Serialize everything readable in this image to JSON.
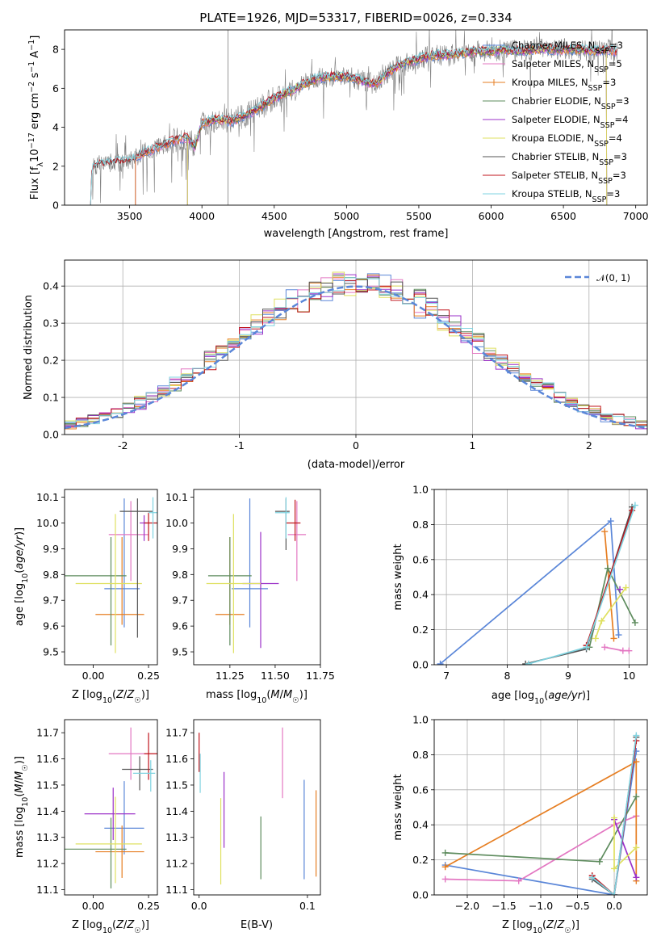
{
  "chart_data": [
    {
      "id": "spectrum",
      "type": "line",
      "title": "PLATE=1926, MJD=53317, FIBERID=0026, z=0.334",
      "xlabel": "wavelength [Angstrom, rest frame]",
      "ylabel": "Flux [f_λ 10^-17 erg cm^-2 s^-1 A^-1]",
      "xlim": [
        3050,
        7080
      ],
      "ylim": [
        0,
        9
      ],
      "xticks": [
        3500,
        4000,
        4500,
        5000,
        5500,
        6000,
        6500,
        7000
      ],
      "yticks": [
        0,
        2,
        4,
        6,
        8
      ],
      "grid": false,
      "legend_position": "top-right",
      "spectrum_anchors": [
        [
          3230,
          0
        ],
        [
          3240,
          1.9
        ],
        [
          3300,
          2.1
        ],
        [
          3400,
          2.2
        ],
        [
          3500,
          2.25
        ],
        [
          3600,
          2.7
        ],
        [
          3700,
          3.0
        ],
        [
          3800,
          3.3
        ],
        [
          3900,
          3.5
        ],
        [
          3950,
          3.0
        ],
        [
          4000,
          4.2
        ],
        [
          4100,
          4.4
        ],
        [
          4200,
          4.3
        ],
        [
          4300,
          4.6
        ],
        [
          4400,
          5.0
        ],
        [
          4500,
          5.5
        ],
        [
          4600,
          5.8
        ],
        [
          4700,
          6.2
        ],
        [
          4800,
          6.5
        ],
        [
          4900,
          6.6
        ],
        [
          5000,
          6.6
        ],
        [
          5100,
          6.4
        ],
        [
          5200,
          6.2
        ],
        [
          5300,
          6.9
        ],
        [
          5400,
          7.3
        ],
        [
          5500,
          7.5
        ],
        [
          5600,
          7.7
        ],
        [
          5700,
          7.7
        ],
        [
          5800,
          7.8
        ],
        [
          5900,
          7.9
        ],
        [
          6000,
          7.9
        ],
        [
          6100,
          8.0
        ],
        [
          6200,
          7.9
        ],
        [
          6300,
          8.0
        ],
        [
          6400,
          8.0
        ],
        [
          6500,
          8.0
        ],
        [
          6600,
          8.0
        ],
        [
          6700,
          7.9
        ],
        [
          6800,
          8.0
        ],
        [
          6870,
          7.9
        ]
      ],
      "series": [
        {
          "name": "Chabrier MILES, N_SSP=3",
          "color": "#5a86d8",
          "xstart": 3540,
          "xend": 6870
        },
        {
          "name": "Salpeter MILES, N_SSP=5",
          "color": "#e377c2",
          "xstart": 3540,
          "xend": 6870
        },
        {
          "name": "Kroupa MILES, N_SSP=3",
          "color": "#e67e22",
          "xstart": 3540,
          "xend": 6870
        },
        {
          "name": "Chabrier ELODIE, N_SSP=3",
          "color": "#5e8c5e",
          "xstart": 3900,
          "xend": 6800
        },
        {
          "name": "Salpeter ELODIE, N_SSP=4",
          "color": "#9b30c8",
          "xstart": 3900,
          "xend": 6800
        },
        {
          "name": "Kroupa ELODIE, N_SSP=4",
          "color": "#dfe060",
          "xstart": 3900,
          "xend": 6800
        },
        {
          "name": "Chabrier STELIB, N_SSP=3",
          "color": "#555555",
          "xstart": 3230,
          "xend": 6870
        },
        {
          "name": "Salpeter STELIB, N_SSP=3",
          "color": "#c0141c",
          "xstart": 3230,
          "xend": 6870
        },
        {
          "name": "Kroupa STELIB, N_SSP=3",
          "color": "#7fd3e0",
          "xstart": 3230,
          "xend": 6870
        }
      ]
    },
    {
      "id": "residuals",
      "type": "line",
      "xlabel": "(data-model)/error",
      "ylabel": "Normed distribution",
      "xlim": [
        -2.5,
        2.5
      ],
      "ylim": [
        0,
        0.47
      ],
      "xticks": [
        -2,
        -1,
        0,
        1,
        2
      ],
      "yticks": [
        0.0,
        0.1,
        0.2,
        0.3,
        0.4
      ],
      "grid": true,
      "legend_position": "top-right",
      "reference_curve": {
        "name": "𝒩(0, 1)",
        "mean": 0,
        "sigma": 1,
        "color": "#5a86d8"
      },
      "bin_width": 0.1,
      "colors": [
        "#5a86d8",
        "#e377c2",
        "#e67e22",
        "#5e8c5e",
        "#9b30c8",
        "#dfe060",
        "#555555",
        "#c0141c",
        "#7fd3e0"
      ]
    },
    {
      "id": "z-age",
      "type": "scatter",
      "xlabel": "Z [log10(Z/Z☉)]",
      "ylabel": "age [log10(age/yr)]",
      "xlim": [
        -0.13,
        0.29
      ],
      "ylim": [
        9.45,
        10.13
      ],
      "xticks": [
        0.0,
        0.25
      ],
      "xtick_labels": [
        "0.00",
        "0.25"
      ],
      "yticks": [
        9.5,
        9.6,
        9.7,
        9.8,
        9.9,
        10.0,
        10.1
      ],
      "points": [
        {
          "color": "#5a86d8",
          "x": 0.14,
          "xerr": [
            0.09,
            0.07
          ],
          "y": 9.745,
          "yerr": [
            0.15,
            0.35
          ]
        },
        {
          "color": "#e377c2",
          "x": 0.17,
          "xerr": [
            0.1,
            0.08
          ],
          "y": 9.955,
          "yerr": [
            0.18,
            0.13
          ]
        },
        {
          "color": "#e67e22",
          "x": 0.13,
          "xerr": [
            0.12,
            0.1
          ],
          "y": 9.645,
          "yerr": [
            0.04,
            0.3
          ]
        },
        {
          "color": "#5e8c5e",
          "x": 0.08,
          "xerr": [
            0.22,
            0.07
          ],
          "y": 9.795,
          "yerr": [
            0.27,
            0.15
          ]
        },
        {
          "color": "#9b30c8",
          "x": 0.23,
          "xerr": [
            0.02,
            0.02
          ],
          "y": 10.0,
          "yerr": [
            0.07,
            0.03
          ]
        },
        {
          "color": "#dfe060",
          "x": 0.1,
          "xerr": [
            0.18,
            0.12
          ],
          "y": 9.765,
          "yerr": [
            0.27,
            0.27
          ]
        },
        {
          "color": "#555555",
          "x": 0.2,
          "xerr": [
            0.08,
            0.07
          ],
          "y": 10.045,
          "yerr": [
            0.49,
            0.05
          ]
        },
        {
          "color": "#c0141c",
          "x": 0.25,
          "xerr": [
            0.02,
            0.04
          ],
          "y": 10.0,
          "yerr": [
            0.07,
            0.04
          ]
        },
        {
          "color": "#7fd3e0",
          "x": 0.27,
          "xerr": [
            0.02,
            0.02
          ],
          "y": 10.04,
          "yerr": [
            0.1,
            0.06
          ]
        }
      ]
    },
    {
      "id": "mass-age",
      "type": "scatter",
      "xlabel": "mass [log10(M/M☉)]",
      "ylabel": "",
      "xlim": [
        11.05,
        11.75
      ],
      "ylim": [
        9.45,
        10.13
      ],
      "xticks": [
        11.25,
        11.5,
        11.75
      ],
      "xtick_labels": [
        "11.25",
        "11.50",
        "11.75"
      ],
      "yticks": [
        9.5,
        9.6,
        9.7,
        9.8,
        9.9,
        10.0,
        10.1
      ],
      "points": [
        {
          "color": "#5a86d8",
          "x": 11.36,
          "xerr": [
            0.1,
            0.1
          ],
          "y": 9.745,
          "yerr": [
            0.15,
            0.35
          ]
        },
        {
          "color": "#e377c2",
          "x": 11.62,
          "xerr": [
            0.05,
            0.05
          ],
          "y": 9.955,
          "yerr": [
            0.18,
            0.13
          ]
        },
        {
          "color": "#e67e22",
          "x": 11.25,
          "xerr": [
            0.08,
            0.08
          ],
          "y": 9.645,
          "yerr": [
            0.04,
            0.3
          ]
        },
        {
          "color": "#5e8c5e",
          "x": 11.25,
          "xerr": [
            0.12,
            0.12
          ],
          "y": 9.795,
          "yerr": [
            0.27,
            0.15
          ]
        },
        {
          "color": "#9b30c8",
          "x": 11.42,
          "xerr": [
            0.1,
            0.1
          ],
          "y": 9.765,
          "yerr": [
            0.25,
            0.2
          ]
        },
        {
          "color": "#dfe060",
          "x": 11.27,
          "xerr": [
            0.15,
            0.15
          ],
          "y": 9.765,
          "yerr": [
            0.27,
            0.27
          ]
        },
        {
          "color": "#555555",
          "x": 11.56,
          "xerr": [
            0.06,
            0.02
          ],
          "y": 10.045,
          "yerr": [
            0.15,
            0.05
          ]
        },
        {
          "color": "#c0141c",
          "x": 11.61,
          "xerr": [
            0.05,
            0.03
          ],
          "y": 10.0,
          "yerr": [
            0.07,
            0.09
          ]
        },
        {
          "color": "#7fd3e0",
          "x": 11.56,
          "xerr": [
            0.06,
            0.02
          ],
          "y": 10.04,
          "yerr": [
            0.1,
            0.06
          ]
        }
      ]
    },
    {
      "id": "weight-age",
      "type": "line",
      "xlabel": "age [log10(age/yr)]",
      "ylabel": "mass weight",
      "xlim": [
        6.8,
        10.3
      ],
      "ylim": [
        0,
        1.0
      ],
      "xticks": [
        7,
        8,
        9,
        10
      ],
      "yticks": [
        0.0,
        0.2,
        0.4,
        0.6,
        0.8,
        1.0
      ],
      "grid": true,
      "series": [
        {
          "color": "#5a86d8",
          "points": [
            [
              6.9,
              0.005
            ],
            [
              9.7,
              0.82
            ],
            [
              9.83,
              0.17
            ]
          ]
        },
        {
          "color": "#e377c2",
          "points": [
            [
              9.6,
              0.1
            ],
            [
              9.9,
              0.08
            ],
            [
              10.0,
              0.08
            ]
          ]
        },
        {
          "color": "#e67e22",
          "points": [
            [
              9.6,
              0.76
            ],
            [
              9.75,
              0.15
            ]
          ]
        },
        {
          "color": "#5e8c5e",
          "points": [
            [
              9.35,
              0.1
            ],
            [
              9.65,
              0.55
            ],
            [
              10.1,
              0.24
            ]
          ]
        },
        {
          "color": "#9b30c8",
          "points": [
            [
              9.85,
              0.43
            ]
          ]
        },
        {
          "color": "#dfe060",
          "points": [
            [
              9.45,
              0.15
            ],
            [
              9.55,
              0.25
            ],
            [
              9.95,
              0.44
            ]
          ]
        },
        {
          "color": "#555555",
          "points": [
            [
              8.3,
              0.005
            ],
            [
              9.3,
              0.09
            ],
            [
              10.05,
              0.9
            ]
          ]
        },
        {
          "color": "#c0141c",
          "points": [
            [
              9.3,
              0.11
            ],
            [
              10.05,
              0.88
            ]
          ]
        },
        {
          "color": "#7fd3e0",
          "points": [
            [
              8.35,
              0.005
            ],
            [
              9.3,
              0.1
            ],
            [
              10.1,
              0.91
            ]
          ]
        }
      ]
    },
    {
      "id": "z-mass",
      "type": "scatter",
      "xlabel": "Z [log10(Z/Z☉)]",
      "ylabel": "mass [log10(M/M☉)]",
      "xlim": [
        -0.13,
        0.29
      ],
      "ylim": [
        11.08,
        11.75
      ],
      "xticks": [
        0.0,
        0.25
      ],
      "xtick_labels": [
        "0.00",
        "0.25"
      ],
      "yticks": [
        11.1,
        11.2,
        11.3,
        11.4,
        11.5,
        11.6,
        11.7
      ],
      "points": [
        {
          "color": "#5a86d8",
          "x": 0.14,
          "xerr": [
            0.09,
            0.09
          ],
          "y": 11.335,
          "yerr": [
            0.1,
            0.18
          ]
        },
        {
          "color": "#e377c2",
          "x": 0.17,
          "xerr": [
            0.1,
            0.08
          ],
          "y": 11.62,
          "yerr": [
            0.1,
            0.1
          ]
        },
        {
          "color": "#e67e22",
          "x": 0.13,
          "xerr": [
            0.12,
            0.1
          ],
          "y": 11.245,
          "yerr": [
            0.1,
            0.1
          ]
        },
        {
          "color": "#5e8c5e",
          "x": 0.08,
          "xerr": [
            0.22,
            0.07
          ],
          "y": 11.255,
          "yerr": [
            0.15,
            0.12
          ]
        },
        {
          "color": "#9b30c8",
          "x": 0.09,
          "xerr": [
            0.13,
            0.1
          ],
          "y": 11.39,
          "yerr": [
            0.1,
            0.1
          ]
        },
        {
          "color": "#dfe060",
          "x": 0.1,
          "xerr": [
            0.18,
            0.12
          ],
          "y": 11.275,
          "yerr": [
            0.15,
            0.18
          ]
        },
        {
          "color": "#555555",
          "x": 0.21,
          "xerr": [
            0.08,
            0.06
          ],
          "y": 11.56,
          "yerr": [
            0.08,
            0.05
          ]
        },
        {
          "color": "#c0141c",
          "x": 0.25,
          "xerr": [
            0.02,
            0.04
          ],
          "y": 11.62,
          "yerr": [
            0.1,
            0.08
          ]
        },
        {
          "color": "#7fd3e0",
          "x": 0.26,
          "xerr": [
            0.08,
            0.02
          ],
          "y": 11.545,
          "yerr": [
            0.07,
            0.05
          ]
        }
      ]
    },
    {
      "id": "ebv-mass",
      "type": "scatter",
      "xlabel": "E(B-V)",
      "ylabel": "",
      "xlim": [
        -0.005,
        0.112
      ],
      "ylim": [
        11.08,
        11.75
      ],
      "xticks": [
        0.0,
        0.1
      ],
      "xtick_labels": [
        "0.0",
        "0.1"
      ],
      "yticks": [
        11.1,
        11.2,
        11.3,
        11.4,
        11.5,
        11.6,
        11.7
      ],
      "bars": [
        {
          "color": "#c0141c",
          "x": 0.0,
          "y0": 11.55,
          "y1": 11.7
        },
        {
          "color": "#7fd3e0",
          "x": 0.001,
          "y0": 11.47,
          "y1": 11.62
        },
        {
          "color": "#dfe060",
          "x": 0.02,
          "y0": 11.12,
          "y1": 11.45
        },
        {
          "color": "#9b30c8",
          "x": 0.023,
          "y0": 11.26,
          "y1": 11.55
        },
        {
          "color": "#5e8c5e",
          "x": 0.057,
          "y0": 11.14,
          "y1": 11.38
        },
        {
          "color": "#e377c2",
          "x": 0.077,
          "y0": 11.45,
          "y1": 11.72
        },
        {
          "color": "#5a86d8",
          "x": 0.097,
          "y0": 11.14,
          "y1": 11.52
        },
        {
          "color": "#e67e22",
          "x": 0.108,
          "y0": 11.15,
          "y1": 11.48
        }
      ]
    },
    {
      "id": "weight-z",
      "type": "line",
      "xlabel": "Z [log10(Z/Z☉)]",
      "ylabel": "mass weight",
      "xlim": [
        -2.45,
        0.45
      ],
      "ylim": [
        0,
        1.0
      ],
      "xticks": [
        -2.0,
        -1.5,
        -1.0,
        -0.5,
        0.0
      ],
      "xtick_labels": [
        "−2.0",
        "−1.5",
        "−1.0",
        "−0.5",
        "0.0"
      ],
      "yticks": [
        0.0,
        0.2,
        0.4,
        0.6,
        0.8,
        1.0
      ],
      "grid": true,
      "series": [
        {
          "color": "#5a86d8",
          "points": [
            [
              -2.3,
              0.17
            ],
            [
              0.0,
              0.0
            ],
            [
              0.3,
              0.82
            ]
          ]
        },
        {
          "color": "#e377c2",
          "points": [
            [
              -2.3,
              0.09
            ],
            [
              -1.3,
              0.08
            ],
            [
              0.0,
              0.4
            ],
            [
              0.3,
              0.45
            ]
          ]
        },
        {
          "color": "#e67e22",
          "points": [
            [
              -2.3,
              0.16
            ],
            [
              0.3,
              0.76
            ],
            [
              0.3,
              0.08
            ]
          ]
        },
        {
          "color": "#5e8c5e",
          "points": [
            [
              -2.3,
              0.24
            ],
            [
              -0.2,
              0.19
            ],
            [
              0.3,
              0.56
            ]
          ]
        },
        {
          "color": "#9b30c8",
          "points": [
            [
              0.0,
              0.43
            ],
            [
              0.3,
              0.1
            ]
          ]
        },
        {
          "color": "#dfe060",
          "points": [
            [
              0.0,
              0.44
            ],
            [
              0.0,
              0.15
            ],
            [
              0.3,
              0.27
            ]
          ]
        },
        {
          "color": "#555555",
          "points": [
            [
              -0.3,
              0.09
            ],
            [
              0.0,
              0.0
            ],
            [
              0.3,
              0.9
            ]
          ]
        },
        {
          "color": "#c0141c",
          "points": [
            [
              -0.3,
              0.11
            ],
            [
              0.0,
              0.0
            ],
            [
              0.3,
              0.88
            ]
          ]
        },
        {
          "color": "#7fd3e0",
          "points": [
            [
              -0.3,
              0.1
            ],
            [
              0.0,
              0.0
            ],
            [
              0.3,
              0.91
            ]
          ]
        }
      ]
    }
  ]
}
